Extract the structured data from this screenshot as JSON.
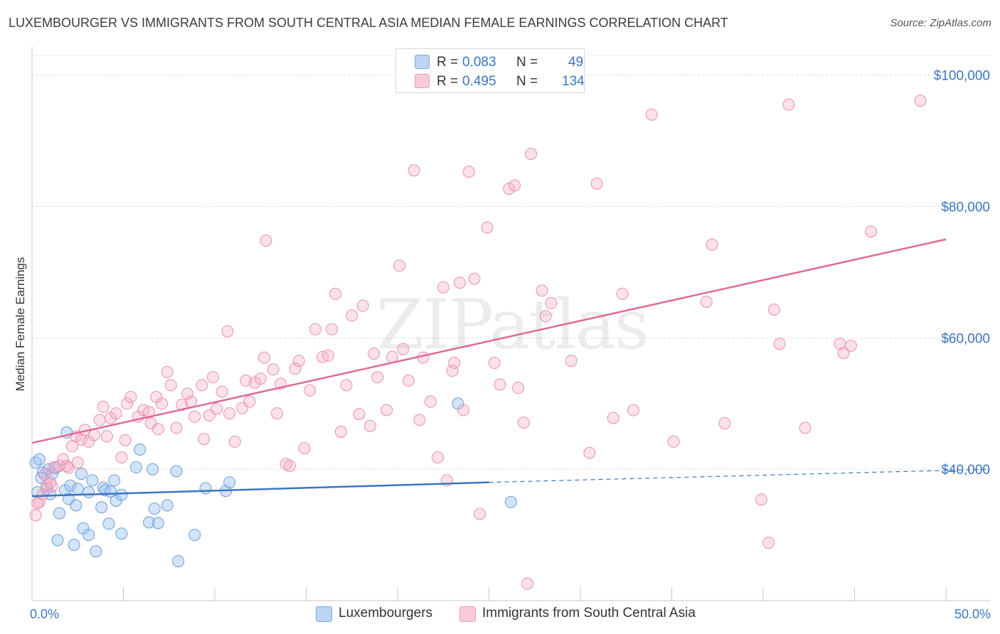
{
  "title": "LUXEMBOURGER VS IMMIGRANTS FROM SOUTH CENTRAL ASIA MEDIAN FEMALE EARNINGS CORRELATION CHART",
  "source": "Source: ZipAtlas.com",
  "watermark": "ZIPatlas",
  "legend": {
    "rows": [
      {
        "r_label": "R =",
        "r_value": "0.083",
        "n_label": "N =",
        "n_value": "49",
        "color": "#9ec3ef"
      },
      {
        "r_label": "R =",
        "r_value": "0.495",
        "n_label": "N =",
        "n_value": "134",
        "color": "#f4a9c1"
      }
    ]
  },
  "bottom_legend": [
    {
      "label": "Luxembourgers",
      "color": "#9ec3ef"
    },
    {
      "label": "Immigrants from South Central Asia",
      "color": "#f4a9c1"
    }
  ],
  "chart_data": {
    "type": "scatter",
    "ylabel": "Median Female Earnings",
    "xlim": [
      0,
      50
    ],
    "ylim": [
      20000,
      103000
    ],
    "y_ticks": [
      {
        "value": 40000,
        "label": "$40,000"
      },
      {
        "value": 60000,
        "label": "$60,000"
      },
      {
        "value": 80000,
        "label": "$80,000"
      },
      {
        "value": 100000,
        "label": "$100,000"
      }
    ],
    "x_tick_labels": [
      {
        "value": 0,
        "label": "0.0%"
      },
      {
        "value": 50,
        "label": "50.0%"
      }
    ],
    "grid": "horizontal dashed",
    "series": [
      {
        "name": "Luxembourgers",
        "color": "#5b93d8",
        "trend": {
          "x0": 0,
          "y0": 35900,
          "x1": 25,
          "y1": 38000,
          "dashed_to_x": 50,
          "dashed_to_y": 40000,
          "color": "#3b75c3"
        },
        "points": [
          [
            0.2,
            41000
          ],
          [
            0.4,
            41500
          ],
          [
            0.6,
            39500
          ],
          [
            0.9,
            40000
          ],
          [
            1.1,
            39300
          ],
          [
            0.8,
            37000
          ],
          [
            1.3,
            40200
          ],
          [
            1.5,
            33300
          ],
          [
            1.8,
            36800
          ],
          [
            1.9,
            45600
          ],
          [
            2.1,
            37500
          ],
          [
            2.3,
            28500
          ],
          [
            2.4,
            34500
          ],
          [
            2.5,
            37000
          ],
          [
            2.7,
            39300
          ],
          [
            2.8,
            31000
          ],
          [
            3.1,
            30000
          ],
          [
            3.1,
            36500
          ],
          [
            3.3,
            38300
          ],
          [
            3.5,
            27500
          ],
          [
            3.8,
            34200
          ],
          [
            3.9,
            37200
          ],
          [
            4.0,
            36800
          ],
          [
            4.2,
            31700
          ],
          [
            4.3,
            36600
          ],
          [
            4.5,
            38300
          ],
          [
            4.6,
            35200
          ],
          [
            4.9,
            36100
          ],
          [
            4.9,
            30200
          ],
          [
            5.7,
            40300
          ],
          [
            5.9,
            43000
          ],
          [
            6.4,
            31900
          ],
          [
            6.7,
            34000
          ],
          [
            6.9,
            31800
          ],
          [
            7.4,
            34500
          ],
          [
            7.9,
            39700
          ],
          [
            8.0,
            26000
          ],
          [
            8.9,
            30000
          ],
          [
            9.5,
            37100
          ],
          [
            10.6,
            36700
          ],
          [
            10.8,
            38000
          ],
          [
            23.3,
            50000
          ],
          [
            26.2,
            35000
          ],
          [
            0.3,
            36500
          ],
          [
            1.4,
            29200
          ],
          [
            0.5,
            38700
          ],
          [
            2.0,
            35500
          ],
          [
            6.6,
            40000
          ],
          [
            1.0,
            36200
          ]
        ]
      },
      {
        "name": "Immigrants from South Central Asia",
        "color": "#ee8db0",
        "trend": {
          "x0": 0,
          "y0": 44000,
          "x1": 50,
          "y1": 75000,
          "color": "#e0699a"
        },
        "points": [
          [
            0.2,
            33000
          ],
          [
            0.4,
            35000
          ],
          [
            0.6,
            36200
          ],
          [
            0.8,
            37500
          ],
          [
            1.0,
            38000
          ],
          [
            1.2,
            40300
          ],
          [
            1.5,
            40500
          ],
          [
            1.7,
            41500
          ],
          [
            1.9,
            40500
          ],
          [
            2.2,
            43500
          ],
          [
            2.4,
            45000
          ],
          [
            2.5,
            41000
          ],
          [
            2.7,
            44500
          ],
          [
            2.9,
            46000
          ],
          [
            3.1,
            44200
          ],
          [
            3.4,
            45200
          ],
          [
            3.7,
            47500
          ],
          [
            3.9,
            49500
          ],
          [
            4.1,
            45000
          ],
          [
            4.3,
            47800
          ],
          [
            4.6,
            48500
          ],
          [
            4.9,
            41800
          ],
          [
            5.2,
            50000
          ],
          [
            5.4,
            51000
          ],
          [
            5.8,
            48000
          ],
          [
            6.1,
            49000
          ],
          [
            6.4,
            48700
          ],
          [
            6.5,
            47000
          ],
          [
            6.8,
            51000
          ],
          [
            7.1,
            50000
          ],
          [
            7.4,
            54800
          ],
          [
            7.6,
            52800
          ],
          [
            7.9,
            46300
          ],
          [
            8.2,
            49800
          ],
          [
            8.5,
            51500
          ],
          [
            8.7,
            50300
          ],
          [
            8.9,
            48000
          ],
          [
            9.3,
            52800
          ],
          [
            9.4,
            44600
          ],
          [
            9.7,
            48200
          ],
          [
            9.9,
            54000
          ],
          [
            10.1,
            49200
          ],
          [
            10.4,
            51800
          ],
          [
            10.7,
            61000
          ],
          [
            10.8,
            48500
          ],
          [
            11.1,
            44200
          ],
          [
            11.5,
            49300
          ],
          [
            11.7,
            53500
          ],
          [
            11.9,
            50300
          ],
          [
            12.2,
            53200
          ],
          [
            12.5,
            53800
          ],
          [
            12.7,
            57000
          ],
          [
            12.8,
            74800
          ],
          [
            13.2,
            55200
          ],
          [
            13.4,
            48500
          ],
          [
            13.6,
            53000
          ],
          [
            13.9,
            40800
          ],
          [
            14.1,
            40500
          ],
          [
            14.4,
            55300
          ],
          [
            14.6,
            56500
          ],
          [
            14.9,
            43200
          ],
          [
            15.2,
            52000
          ],
          [
            15.5,
            61300
          ],
          [
            15.9,
            57100
          ],
          [
            16.2,
            57300
          ],
          [
            16.4,
            61300
          ],
          [
            16.6,
            66700
          ],
          [
            16.9,
            45700
          ],
          [
            17.2,
            52800
          ],
          [
            17.5,
            63400
          ],
          [
            17.9,
            48400
          ],
          [
            18.1,
            64900
          ],
          [
            18.5,
            46600
          ],
          [
            18.7,
            57600
          ],
          [
            18.9,
            54000
          ],
          [
            19.4,
            49000
          ],
          [
            19.7,
            57100
          ],
          [
            20.1,
            71000
          ],
          [
            20.3,
            58300
          ],
          [
            20.6,
            53500
          ],
          [
            20.9,
            85500
          ],
          [
            21.2,
            47500
          ],
          [
            21.4,
            57000
          ],
          [
            21.8,
            50300
          ],
          [
            22.2,
            41800
          ],
          [
            22.5,
            67700
          ],
          [
            22.7,
            38300
          ],
          [
            23.0,
            55000
          ],
          [
            23.1,
            56200
          ],
          [
            23.4,
            68400
          ],
          [
            23.6,
            49000
          ],
          [
            23.9,
            85300
          ],
          [
            24.2,
            69000
          ],
          [
            24.5,
            33200
          ],
          [
            24.9,
            76800
          ],
          [
            25.3,
            56200
          ],
          [
            25.6,
            52900
          ],
          [
            26.1,
            82700
          ],
          [
            26.4,
            83200
          ],
          [
            26.6,
            52400
          ],
          [
            26.9,
            47100
          ],
          [
            27.1,
            22600
          ],
          [
            27.3,
            88000
          ],
          [
            27.9,
            67200
          ],
          [
            28.1,
            63300
          ],
          [
            28.4,
            65300
          ],
          [
            29.5,
            56500
          ],
          [
            30.5,
            42500
          ],
          [
            30.9,
            83500
          ],
          [
            31.8,
            47800
          ],
          [
            32.3,
            66700
          ],
          [
            32.9,
            49000
          ],
          [
            33.9,
            94000
          ],
          [
            35.1,
            44200
          ],
          [
            36.9,
            65500
          ],
          [
            37.2,
            74200
          ],
          [
            37.9,
            47000
          ],
          [
            39.9,
            35400
          ],
          [
            40.3,
            28800
          ],
          [
            40.6,
            64300
          ],
          [
            40.9,
            59100
          ],
          [
            41.4,
            95500
          ],
          [
            42.3,
            46300
          ],
          [
            44.2,
            59100
          ],
          [
            44.4,
            57700
          ],
          [
            44.8,
            58800
          ],
          [
            45.9,
            76200
          ],
          [
            48.6,
            96100
          ],
          [
            0.3,
            34800
          ],
          [
            0.7,
            39200
          ],
          [
            1.1,
            37400
          ],
          [
            2.0,
            40200
          ],
          [
            5.1,
            44400
          ],
          [
            6.9,
            46100
          ]
        ]
      }
    ]
  }
}
